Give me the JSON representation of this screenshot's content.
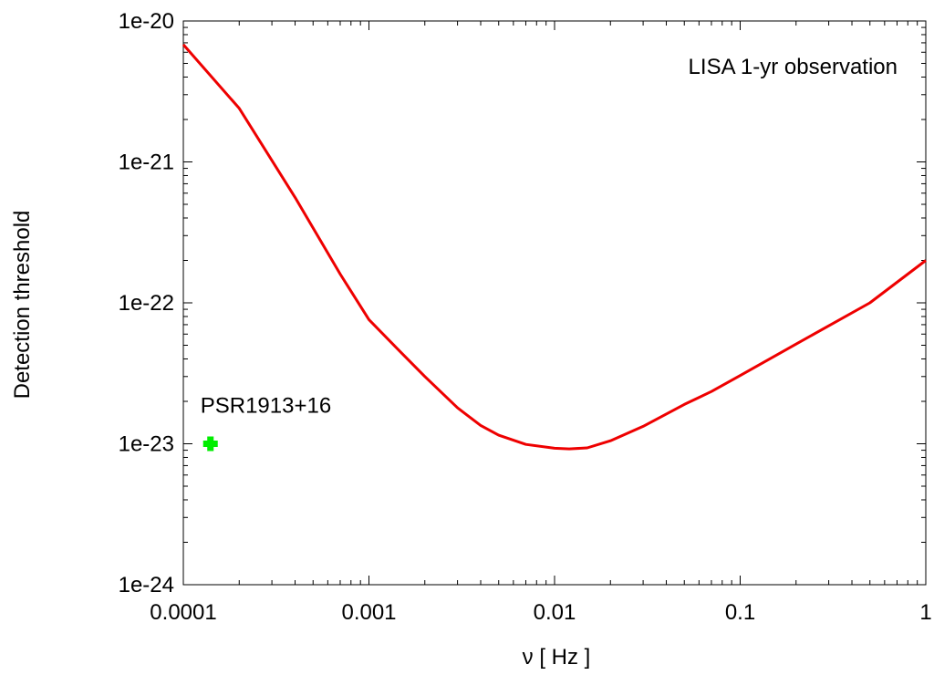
{
  "chart_data": {
    "type": "line",
    "title": "",
    "xlabel": "ν [ Hz ]",
    "ylabel": "Detection threshold",
    "xscale": "log",
    "yscale": "log",
    "xlim": [
      0.0001,
      1
    ],
    "ylim": [
      1e-24,
      1e-20
    ],
    "x_tick_values": [
      0.0001,
      0.001,
      0.01,
      0.1,
      1
    ],
    "x_tick_labels": [
      "0.0001",
      "0.001",
      "0.01",
      "0.1",
      "1"
    ],
    "y_tick_values": [
      1e-24,
      1e-23,
      1e-22,
      1e-21,
      1e-20
    ],
    "y_tick_labels": [
      "1e-24",
      "1e-23",
      "1e-22",
      "1e-21",
      "1e-20"
    ],
    "grid": false,
    "legend": "none",
    "series": [
      {
        "color": "#ee0000",
        "x": [
          0.0001,
          0.0002,
          0.0004,
          0.0007,
          0.001,
          0.0015,
          0.002,
          0.003,
          0.004,
          0.005,
          0.007,
          0.01,
          0.012,
          0.015,
          0.02,
          0.03,
          0.05,
          0.07,
          0.1,
          0.2,
          0.5,
          1
        ],
        "y": [
          6.8e-21,
          2.4e-21,
          5.6e-22,
          1.6e-22,
          7.6e-23,
          4.4e-23,
          3e-23,
          1.8e-23,
          1.35e-23,
          1.15e-23,
          9.9e-24,
          9.3e-24,
          9.2e-24,
          9.35e-24,
          1.05e-23,
          1.33e-23,
          1.9e-23,
          2.35e-23,
          3.05e-23,
          5.1e-23,
          1e-22,
          2e-22
        ]
      }
    ],
    "points": [
      {
        "label": "PSR1913+16",
        "x": 0.00014,
        "y": 1e-23,
        "color": "#00ee00"
      }
    ],
    "annotations": [
      "LISA 1-yr observation"
    ]
  }
}
